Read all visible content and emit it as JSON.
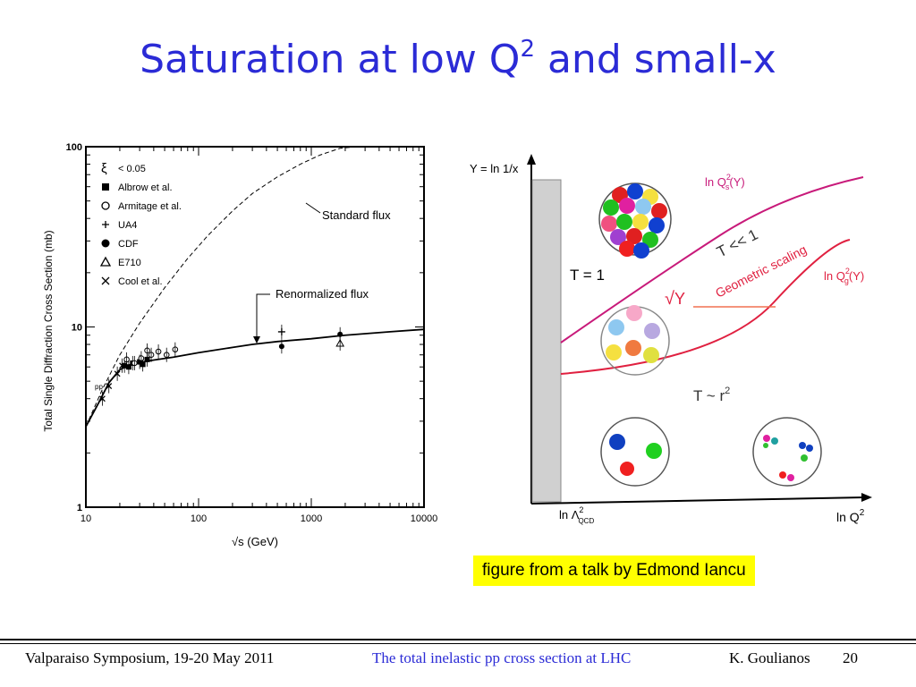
{
  "slide": {
    "title_main": "Saturation at low Q",
    "title_sup": "2",
    "title_tail": " and small-x",
    "credit": "figure from a talk by Edmond Iancu"
  },
  "footer": {
    "left": "Valparaiso Symposium, 19-20 May 2011",
    "center": "The total inelastic pp cross section at LHC",
    "author": "K. Goulianos",
    "page": "20"
  },
  "chart_data": {
    "type": "scatter",
    "ylabel": "Total Single Diffraction Cross Section (mb)",
    "xlabel": "√s (GeV)",
    "x_scale": "log",
    "y_scale": "log",
    "xlim": [
      10,
      10000
    ],
    "ylim": [
      1,
      100
    ],
    "x_ticks": [
      "10",
      "100",
      "1000",
      "10000"
    ],
    "y_ticks": [
      "1",
      "10",
      "100"
    ],
    "legend": [
      {
        "symbol": "ξ",
        "text": "<  0.05"
      },
      {
        "symbol": "filled-square",
        "text": "Albrow  et  al."
      },
      {
        "symbol": "open-circle",
        "text": "Armitage  et  al."
      },
      {
        "symbol": "plus",
        "text": "UA4"
      },
      {
        "symbol": "filled-circle",
        "text": "CDF"
      },
      {
        "symbol": "open-triangle",
        "text": "E710"
      },
      {
        "symbol": "cross",
        "text": "Cool et al."
      }
    ],
    "annotations": [
      "Standard flux",
      "Renormalized flux",
      "pp"
    ],
    "series": [
      {
        "name": "Standard flux",
        "style": "dashed",
        "x": [
          10,
          14,
          20,
          30,
          50,
          80,
          120,
          200,
          300,
          500,
          800,
          1200,
          1800,
          2500
        ],
        "y": [
          2.8,
          4.5,
          7.0,
          10.5,
          16.5,
          24,
          32,
          44,
          55,
          68,
          80,
          90,
          98,
          100
        ]
      },
      {
        "name": "Renormalized flux",
        "style": "solid",
        "x": [
          10,
          13,
          16,
          20,
          25,
          30,
          40,
          60,
          100,
          200,
          300,
          500,
          1000,
          2000,
          5000,
          10000
        ],
        "y": [
          2.8,
          3.8,
          4.9,
          5.8,
          6.2,
          6.35,
          6.55,
          6.8,
          7.2,
          7.7,
          8.0,
          8.3,
          8.6,
          9.0,
          9.4,
          9.7
        ]
      },
      {
        "name": "Albrow  et  al.",
        "marker": "filled-square",
        "x": [
          22,
          24,
          26,
          30,
          32,
          35
        ],
        "y": [
          6.1,
          6.0,
          6.3,
          6.4,
          6.2,
          6.6
        ]
      },
      {
        "name": "Armitage  et  al.",
        "marker": "open-circle",
        "x": [
          23,
          27,
          31,
          35,
          38,
          44,
          52,
          62
        ],
        "y": [
          6.6,
          6.3,
          6.7,
          7.4,
          7.0,
          7.3,
          7.0,
          7.5
        ]
      },
      {
        "name": "UA4",
        "marker": "plus",
        "x": [
          546
        ],
        "y": [
          9.4
        ]
      },
      {
        "name": "CDF",
        "marker": "filled-circle",
        "x": [
          546,
          1800
        ],
        "y": [
          7.8,
          9.1
        ]
      },
      {
        "name": "E710",
        "marker": "open-triangle",
        "x": [
          1800
        ],
        "y": [
          8.1
        ]
      },
      {
        "name": "Cool et al.",
        "marker": "cross",
        "x": [
          14,
          16,
          19,
          21
        ],
        "y": [
          4.0,
          4.7,
          5.5,
          6.1
        ]
      }
    ]
  },
  "diagram": {
    "y_axis_label": "Y = ln 1/x",
    "x_axis_label": "ln Q",
    "x_axis_sup": "2",
    "lambda_label": "ln Λ",
    "lambda_sup": "2",
    "lambda_sub": "QCD",
    "qs_label": "ln Q",
    "qs_sup": "2",
    "qs_sub": "s",
    "qs_tail": "(Y)",
    "qg_label": "ln Q",
    "qg_sup": "2",
    "qg_sub": "g",
    "qg_tail": "(Y)",
    "t1_label": "T = 1",
    "tll_label": "T << 1",
    "geo_label": "Geometric  scaling",
    "sqrtY_label": "Y",
    "tr2_label": "T ~ r",
    "tr2_sup": "2"
  }
}
